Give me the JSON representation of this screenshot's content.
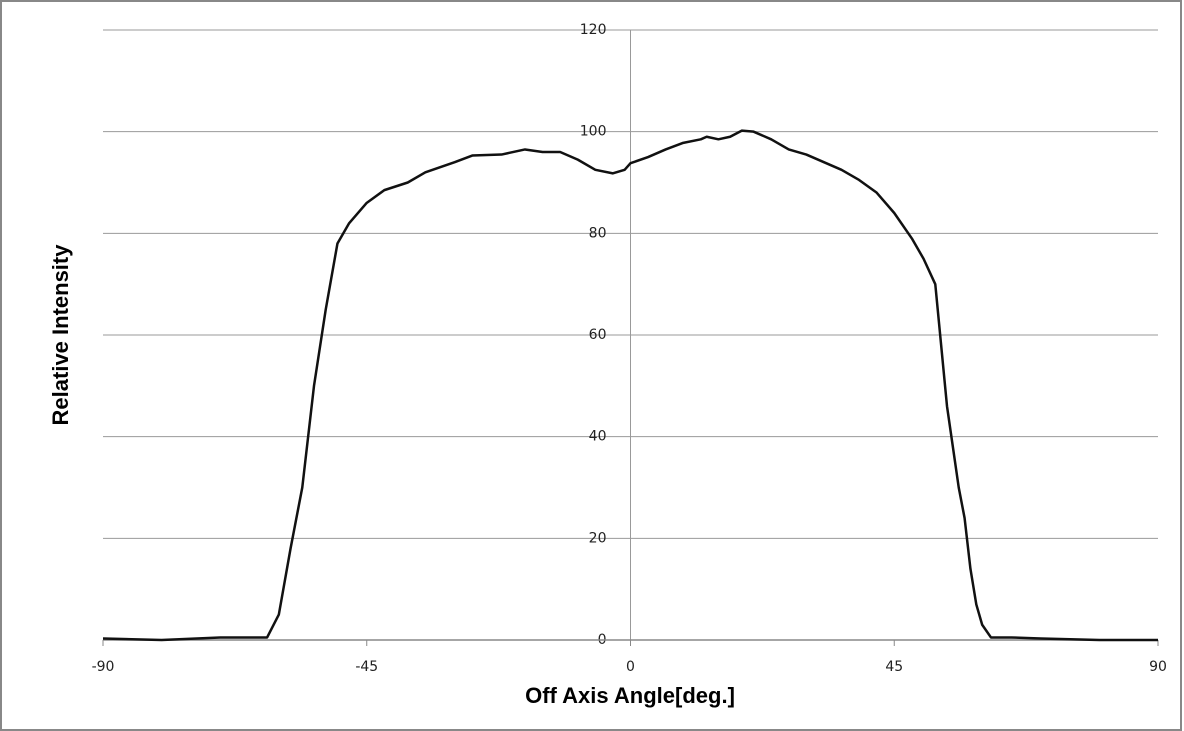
{
  "chart_data": {
    "type": "line",
    "xlabel": "Off Axis Angle[deg.]",
    "ylabel": "Relative Intensity",
    "x": [
      -90,
      -80,
      -70,
      -62,
      -60,
      -58,
      -56,
      -54,
      -52,
      -50,
      -48,
      -45,
      -42,
      -38,
      -35,
      -30,
      -27,
      -22,
      -18,
      -15,
      -12,
      -9,
      -6,
      -3,
      -1,
      0,
      3,
      6,
      9,
      12,
      13,
      15,
      17,
      19,
      21,
      24,
      27,
      30,
      33,
      36,
      39,
      42,
      45,
      48,
      50,
      52,
      53,
      54,
      55,
      56,
      57,
      58,
      59,
      60,
      61.5,
      65,
      70,
      80,
      90
    ],
    "series": [
      {
        "name": "Relative Intensity",
        "color": "#111111",
        "values": [
          0.3,
          0,
          0.5,
          0.5,
          5,
          18,
          30,
          50,
          65,
          78,
          82,
          86,
          88.5,
          90,
          92,
          94,
          95.3,
          95.5,
          96.5,
          96,
          96,
          94.5,
          92.5,
          91.8,
          92.5,
          93.8,
          95,
          96.5,
          97.8,
          98.5,
          99,
          98.5,
          99,
          100.2,
          100,
          98.5,
          96.5,
          95.5,
          94,
          92.5,
          90.5,
          88,
          84,
          79,
          75,
          70,
          58,
          46,
          38,
          30,
          24,
          14,
          7,
          3,
          0.5,
          0.5,
          0.3,
          0,
          0
        ]
      }
    ],
    "xlim": [
      -90,
      90
    ],
    "ylim": [
      0,
      120
    ],
    "xticks": [
      -90,
      -45,
      0,
      45,
      90
    ],
    "yticks": [
      0,
      20,
      40,
      60,
      80,
      100,
      120
    ],
    "grid": true
  }
}
